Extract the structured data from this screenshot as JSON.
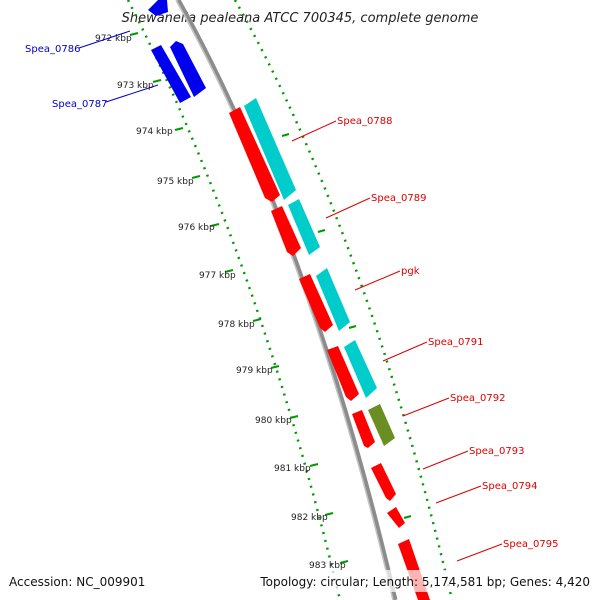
{
  "title": "Shewanella pealeana ATCC 700345, complete genome",
  "accession": "Accession: NC_009901",
  "summary": "Topology: circular; Length: 5,174,581 bp; Genes: 4,420",
  "colors": {
    "backbone": "#888888",
    "tick": "#009900",
    "forward_cds": "#0000ee",
    "reverse_cds": "#ff0000",
    "rna_track": "#00cccc",
    "other_feature": "#6b8e23",
    "forward_label": "#0000cc",
    "reverse_label": "#dd0000"
  },
  "ticks": [
    {
      "label": "972 kbp"
    },
    {
      "label": "973 kbp"
    },
    {
      "label": "974 kbp"
    },
    {
      "label": "975 kbp"
    },
    {
      "label": "976 kbp"
    },
    {
      "label": "977 kbp"
    },
    {
      "label": "978 kbp"
    },
    {
      "label": "979 kbp"
    },
    {
      "label": "980 kbp"
    },
    {
      "label": "981 kbp"
    },
    {
      "label": "982 kbp"
    },
    {
      "label": "983 kbp"
    }
  ],
  "forward_genes": [
    {
      "label": "Spea_0786"
    },
    {
      "label": "Spea_0787"
    }
  ],
  "reverse_genes": [
    {
      "label": "Spea_0788"
    },
    {
      "label": "Spea_0789"
    },
    {
      "label": "pgk"
    },
    {
      "label": "Spea_0791"
    },
    {
      "label": "Spea_0792"
    },
    {
      "label": "Spea_0793"
    },
    {
      "label": "Spea_0794"
    },
    {
      "label": "Spea_0795"
    }
  ]
}
